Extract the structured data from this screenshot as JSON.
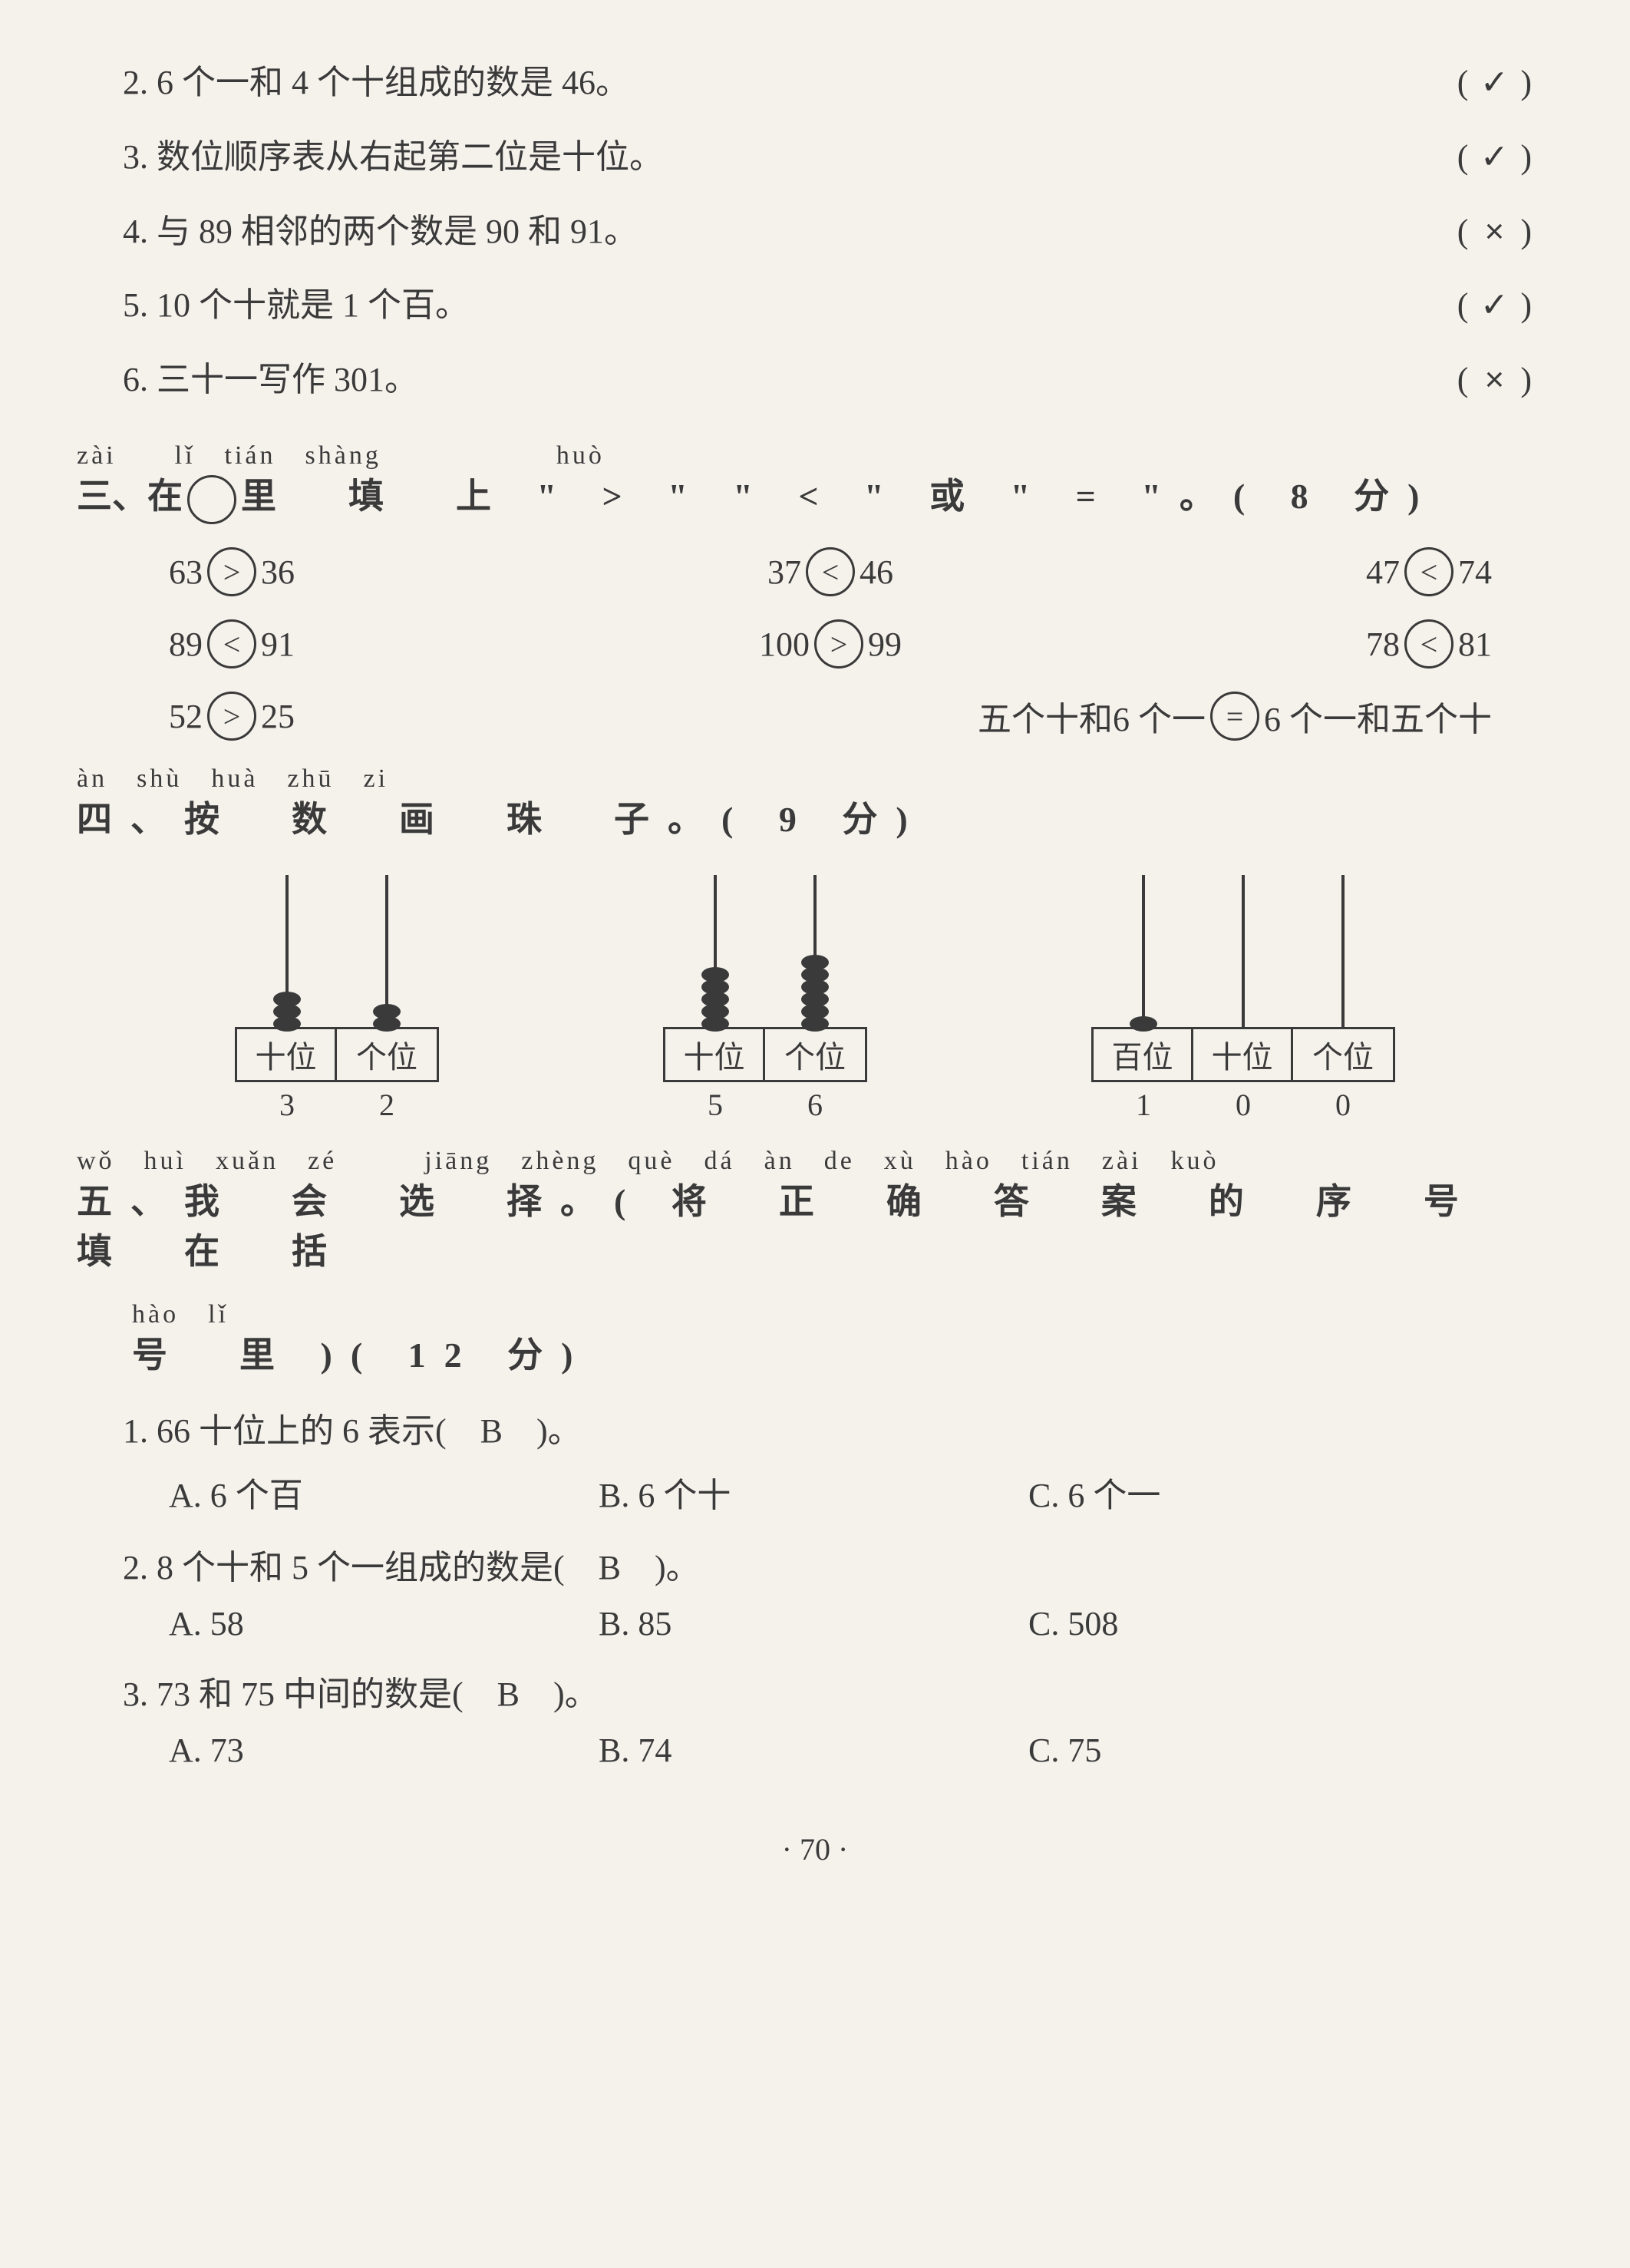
{
  "tf": [
    {
      "num": "2.",
      "text": "6 个一和 4 个十组成的数是 46。",
      "mark": "✓"
    },
    {
      "num": "3.",
      "text": "数位顺序表从右起第二位是十位。",
      "mark": "✓"
    },
    {
      "num": "4.",
      "text": "与 89 相邻的两个数是 90 和 91。",
      "mark": "×"
    },
    {
      "num": "5.",
      "text": "10 个十就是 1 个百。",
      "mark": "✓"
    },
    {
      "num": "6.",
      "text": "三十一写作 301。",
      "mark": "×"
    }
  ],
  "sec3": {
    "pinyin": "zài　　lǐ　tián　shàng　　　　　　huò",
    "title_pre": "三、在",
    "title_post": "里　填　上 \" > \" \" < \" 或 \" = \"。( 8 分)",
    "rows": [
      [
        {
          "l": "63",
          "op": ">",
          "r": "36"
        },
        {
          "l": "37",
          "op": "<",
          "r": "46"
        },
        {
          "l": "47",
          "op": "<",
          "r": "74"
        }
      ],
      [
        {
          "l": "89",
          "op": "<",
          "r": "91"
        },
        {
          "l": "100",
          "op": ">",
          "r": "99"
        },
        {
          "l": "78",
          "op": "<",
          "r": "81"
        }
      ],
      [
        {
          "l": "52",
          "op": ">",
          "r": "25"
        },
        {
          "l": "五个十和6 个一",
          "op": "=",
          "r": "6 个一和五个十"
        }
      ]
    ]
  },
  "sec4": {
    "pinyin": "àn　shù　huà　zhū　zi",
    "title": "四、按　数　画　珠　子。( 9 分)",
    "abaci": [
      {
        "cols": [
          {
            "label": "十位",
            "n": "3",
            "beads": 3
          },
          {
            "label": "个位",
            "n": "2",
            "beads": 2
          }
        ]
      },
      {
        "cols": [
          {
            "label": "十位",
            "n": "5",
            "beads": 5
          },
          {
            "label": "个位",
            "n": "6",
            "beads": 6
          }
        ]
      },
      {
        "cols": [
          {
            "label": "百位",
            "n": "1",
            "beads": 1
          },
          {
            "label": "十位",
            "n": "0",
            "beads": 0
          },
          {
            "label": "个位",
            "n": "0",
            "beads": 0
          }
        ]
      }
    ]
  },
  "sec5": {
    "pinyin1": "wǒ　huì　xuǎn　zé　　　jiāng　zhèng　què　dá　àn　de　xù　hào　tián　zài　kuò",
    "title1": "五、我　会　选　择。( 将　正　确　答　案　的　序　号　填　在　括",
    "pinyin2": "hào　lǐ",
    "title2": "号　里 )( 12 分)",
    "qs": [
      {
        "q": "1. 66 十位上的 6 表示(　B　)。",
        "a": "A. 6 个百",
        "b": "B. 6 个十",
        "c": "C. 6 个一"
      },
      {
        "q": "2. 8 个十和 5 个一组成的数是(　B　)。",
        "a": "A. 58",
        "b": "B. 85",
        "c": "C. 508"
      },
      {
        "q": "3. 73 和 75 中间的数是(　B　)。",
        "a": "A. 73",
        "b": "B. 74",
        "c": "C. 75"
      }
    ]
  },
  "footer": "· 70 ·"
}
